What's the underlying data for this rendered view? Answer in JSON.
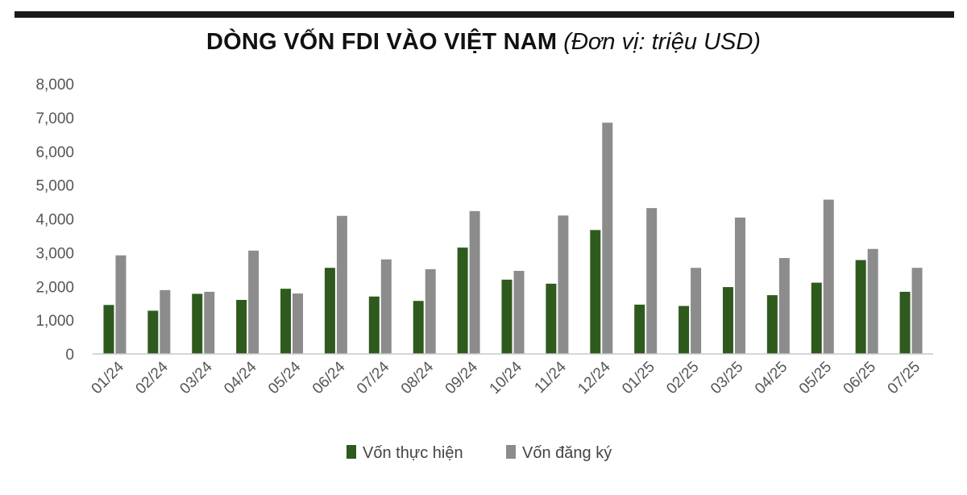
{
  "title": "DÒNG VỐN FDI VÀO VIỆT NAM",
  "subtitle": "(Đơn vị: triệu USD)",
  "chart_data": {
    "type": "bar",
    "categories": [
      "01/24",
      "02/24",
      "03/24",
      "04/24",
      "05/24",
      "06/24",
      "07/24",
      "08/24",
      "09/24",
      "10/24",
      "11/24",
      "12/24",
      "01/25",
      "02/25",
      "03/25",
      "04/25",
      "05/25",
      "06/25",
      "07/25"
    ],
    "series": [
      {
        "name": "Vốn thực hiện",
        "color": "#2f5a1e",
        "values": [
          1450,
          1280,
          1780,
          1600,
          1930,
          2550,
          1700,
          1570,
          3150,
          2200,
          2080,
          3670,
          1460,
          1420,
          1980,
          1740,
          2110,
          2780,
          1840
        ]
      },
      {
        "name": "Vốn đăng ký",
        "color": "#8c8c8c",
        "values": [
          2920,
          1890,
          1840,
          3060,
          1790,
          4090,
          2800,
          2510,
          4230,
          2460,
          4100,
          6850,
          4320,
          2550,
          4040,
          2840,
          4570,
          3110,
          2550
        ]
      }
    ],
    "ylim": [
      0,
      8000
    ],
    "yticks": [
      0,
      1000,
      2000,
      3000,
      4000,
      5000,
      6000,
      7000,
      8000
    ],
    "ytick_labels": [
      "0",
      "1,000",
      "2,000",
      "3,000",
      "4,000",
      "5,000",
      "6,000",
      "7,000",
      "8,000"
    ],
    "xlabel": "",
    "ylabel": "",
    "grid": false,
    "legend_position": "bottom"
  }
}
